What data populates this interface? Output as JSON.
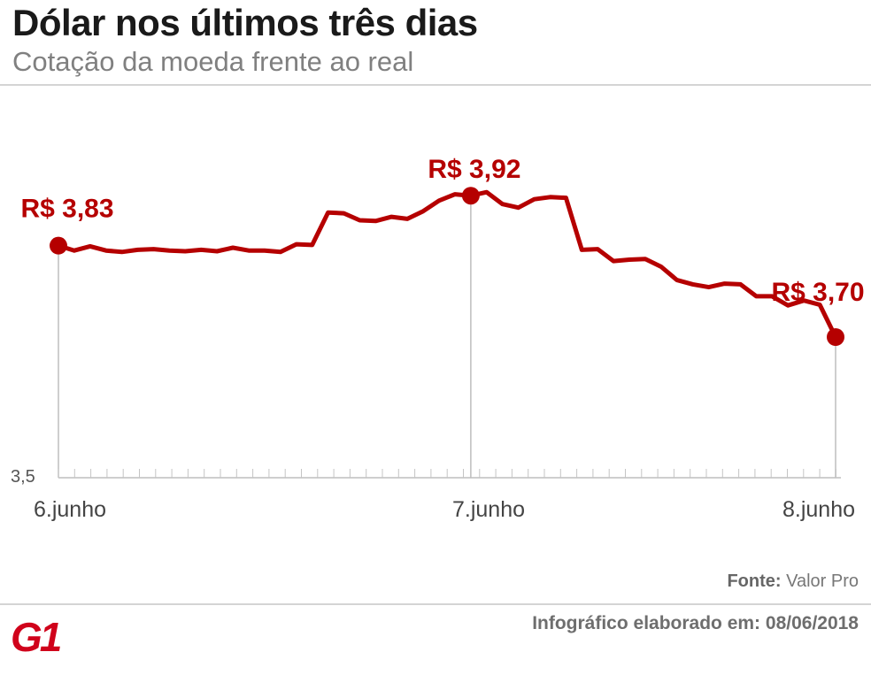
{
  "header": {
    "title": "Dólar nos últimos três dias",
    "subtitle": "Cotação da moeda frente ao real"
  },
  "chart_data": {
    "type": "line",
    "title": "Dólar nos últimos três dias",
    "subtitle": "Cotação da moeda frente ao real",
    "x_tick_labels": [
      "6.junho",
      "7.junho",
      "8.junho"
    ],
    "y_axis_label": "3,5",
    "ylim": [
      3.5,
      4.0
    ],
    "grid": false,
    "line_color": "#b50000",
    "series": [
      {
        "values": [
          3.83,
          3.823,
          3.829,
          3.823,
          3.821,
          3.824,
          3.825,
          3.823,
          3.822,
          3.824,
          3.822,
          3.827,
          3.823,
          3.823,
          3.821,
          3.832,
          3.831,
          3.877,
          3.876,
          3.866,
          3.865,
          3.871,
          3.868,
          3.879,
          3.894,
          3.903,
          3.901,
          3.906,
          3.889,
          3.884,
          3.896,
          3.899,
          3.898,
          3.824,
          3.825,
          3.808,
          3.81,
          3.811,
          3.8,
          3.781,
          3.775,
          3.771,
          3.776,
          3.775,
          3.758,
          3.758,
          3.745,
          3.752,
          3.746,
          3.7
        ]
      }
    ],
    "annotations": [
      {
        "label": "R$ 3,83",
        "value": 3.83,
        "point_index": 0
      },
      {
        "label": "R$ 3,92",
        "value": 3.92,
        "point_index": 26
      },
      {
        "label": "R$ 3,70",
        "value": 3.7,
        "point_index": 49
      }
    ]
  },
  "footer": {
    "source_label": "Fonte:",
    "source_value": "Valor Pro",
    "logo_text": "G1",
    "credit": "Infográfico elaborado em: 08/06/2018"
  },
  "colors": {
    "line": "#b50000",
    "marker": "#b50000",
    "annotation": "#b50000",
    "title": "#1a1a1a",
    "subtitle": "#808080",
    "logo": "#d0021b"
  }
}
